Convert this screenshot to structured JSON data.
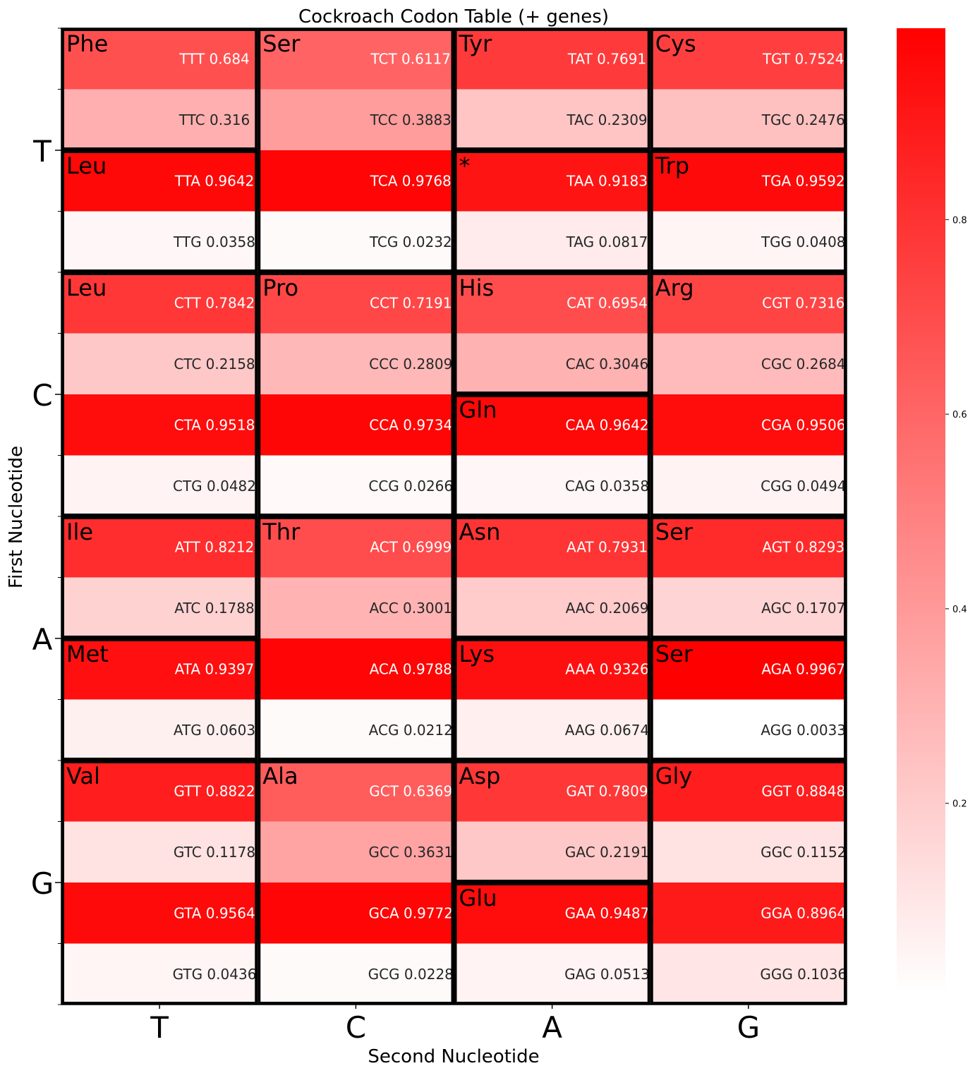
{
  "chart_data": {
    "type": "heatmap",
    "title": "Cockroach Codon Table (+ genes)",
    "xlabel": "Second Nucleotide",
    "ylabel": "First Nucleotide",
    "x_categories": [
      "T",
      "C",
      "A",
      "G"
    ],
    "y_categories": [
      "T",
      "C",
      "A",
      "G"
    ],
    "third_nucleotide_order": [
      "T",
      "C",
      "A",
      "G"
    ],
    "value_range": [
      0.0033,
      0.9967
    ],
    "colormap": {
      "low": "#ffffff",
      "high": "#ff0000"
    },
    "colorbar": {
      "ticks": [
        0.2,
        0.4,
        0.6,
        0.8
      ],
      "tick_labels": [
        "0.2",
        "0.4",
        "0.6",
        "0.8"
      ]
    },
    "cells": [
      [
        [
          {
            "codon": "TTT",
            "value": 0.684,
            "label": "TTT 0.684"
          },
          {
            "codon": "TTC",
            "value": 0.316,
            "label": "TTC 0.316"
          },
          {
            "codon": "TTA",
            "value": 0.9642,
            "label": "TTA 0.9642"
          },
          {
            "codon": "TTG",
            "value": 0.0358,
            "label": "TTG 0.0358"
          }
        ],
        [
          {
            "codon": "TCT",
            "value": 0.6117,
            "label": "TCT 0.6117"
          },
          {
            "codon": "TCC",
            "value": 0.3883,
            "label": "TCC 0.3883"
          },
          {
            "codon": "TCA",
            "value": 0.9768,
            "label": "TCA 0.9768"
          },
          {
            "codon": "TCG",
            "value": 0.0232,
            "label": "TCG 0.0232"
          }
        ],
        [
          {
            "codon": "TAT",
            "value": 0.7691,
            "label": "TAT 0.7691"
          },
          {
            "codon": "TAC",
            "value": 0.2309,
            "label": "TAC 0.2309"
          },
          {
            "codon": "TAA",
            "value": 0.9183,
            "label": "TAA 0.9183"
          },
          {
            "codon": "TAG",
            "value": 0.0817,
            "label": "TAG 0.0817"
          }
        ],
        [
          {
            "codon": "TGT",
            "value": 0.7524,
            "label": "TGT 0.7524"
          },
          {
            "codon": "TGC",
            "value": 0.2476,
            "label": "TGC 0.2476"
          },
          {
            "codon": "TGA",
            "value": 0.9592,
            "label": "TGA 0.9592"
          },
          {
            "codon": "TGG",
            "value": 0.0408,
            "label": "TGG 0.0408"
          }
        ]
      ],
      [
        [
          {
            "codon": "CTT",
            "value": 0.7842,
            "label": "CTT 0.7842"
          },
          {
            "codon": "CTC",
            "value": 0.2158,
            "label": "CTC 0.2158"
          },
          {
            "codon": "CTA",
            "value": 0.9518,
            "label": "CTA 0.9518"
          },
          {
            "codon": "CTG",
            "value": 0.0482,
            "label": "CTG 0.0482"
          }
        ],
        [
          {
            "codon": "CCT",
            "value": 0.7191,
            "label": "CCT 0.7191"
          },
          {
            "codon": "CCC",
            "value": 0.2809,
            "label": "CCC 0.2809"
          },
          {
            "codon": "CCA",
            "value": 0.9734,
            "label": "CCA 0.9734"
          },
          {
            "codon": "CCG",
            "value": 0.0266,
            "label": "CCG 0.0266"
          }
        ],
        [
          {
            "codon": "CAT",
            "value": 0.6954,
            "label": "CAT 0.6954"
          },
          {
            "codon": "CAC",
            "value": 0.3046,
            "label": "CAC 0.3046"
          },
          {
            "codon": "CAA",
            "value": 0.9642,
            "label": "CAA 0.9642"
          },
          {
            "codon": "CAG",
            "value": 0.0358,
            "label": "CAG 0.0358"
          }
        ],
        [
          {
            "codon": "CGT",
            "value": 0.7316,
            "label": "CGT 0.7316"
          },
          {
            "codon": "CGC",
            "value": 0.2684,
            "label": "CGC 0.2684"
          },
          {
            "codon": "CGA",
            "value": 0.9506,
            "label": "CGA 0.9506"
          },
          {
            "codon": "CGG",
            "value": 0.0494,
            "label": "CGG 0.0494"
          }
        ]
      ],
      [
        [
          {
            "codon": "ATT",
            "value": 0.8212,
            "label": "ATT 0.8212"
          },
          {
            "codon": "ATC",
            "value": 0.1788,
            "label": "ATC 0.1788"
          },
          {
            "codon": "ATA",
            "value": 0.9397,
            "label": "ATA 0.9397"
          },
          {
            "codon": "ATG",
            "value": 0.0603,
            "label": "ATG 0.0603"
          }
        ],
        [
          {
            "codon": "ACT",
            "value": 0.6999,
            "label": "ACT 0.6999"
          },
          {
            "codon": "ACC",
            "value": 0.3001,
            "label": "ACC 0.3001"
          },
          {
            "codon": "ACA",
            "value": 0.9788,
            "label": "ACA 0.9788"
          },
          {
            "codon": "ACG",
            "value": 0.0212,
            "label": "ACG 0.0212"
          }
        ],
        [
          {
            "codon": "AAT",
            "value": 0.7931,
            "label": "AAT 0.7931"
          },
          {
            "codon": "AAC",
            "value": 0.2069,
            "label": "AAC 0.2069"
          },
          {
            "codon": "AAA",
            "value": 0.9326,
            "label": "AAA 0.9326"
          },
          {
            "codon": "AAG",
            "value": 0.0674,
            "label": "AAG 0.0674"
          }
        ],
        [
          {
            "codon": "AGT",
            "value": 0.8293,
            "label": "AGT 0.8293"
          },
          {
            "codon": "AGC",
            "value": 0.1707,
            "label": "AGC 0.1707"
          },
          {
            "codon": "AGA",
            "value": 0.9967,
            "label": "AGA 0.9967"
          },
          {
            "codon": "AGG",
            "value": 0.0033,
            "label": "AGG 0.0033"
          }
        ]
      ],
      [
        [
          {
            "codon": "GTT",
            "value": 0.8822,
            "label": "GTT 0.8822"
          },
          {
            "codon": "GTC",
            "value": 0.1178,
            "label": "GTC 0.1178"
          },
          {
            "codon": "GTA",
            "value": 0.9564,
            "label": "GTA 0.9564"
          },
          {
            "codon": "GTG",
            "value": 0.0436,
            "label": "GTG 0.0436"
          }
        ],
        [
          {
            "codon": "GCT",
            "value": 0.6369,
            "label": "GCT 0.6369"
          },
          {
            "codon": "GCC",
            "value": 0.3631,
            "label": "GCC 0.3631"
          },
          {
            "codon": "GCA",
            "value": 0.9772,
            "label": "GCA 0.9772"
          },
          {
            "codon": "GCG",
            "value": 0.0228,
            "label": "GCG 0.0228"
          }
        ],
        [
          {
            "codon": "GAT",
            "value": 0.7809,
            "label": "GAT 0.7809"
          },
          {
            "codon": "GAC",
            "value": 0.2191,
            "label": "GAC 0.2191"
          },
          {
            "codon": "GAA",
            "value": 0.9487,
            "label": "GAA 0.9487"
          },
          {
            "codon": "GAG",
            "value": 0.0513,
            "label": "GAG 0.0513"
          }
        ],
        [
          {
            "codon": "GGT",
            "value": 0.8848,
            "label": "GGT 0.8848"
          },
          {
            "codon": "GGC",
            "value": 0.1152,
            "label": "GGC 0.1152"
          },
          {
            "codon": "GGA",
            "value": 0.8964,
            "label": "GGA 0.8964"
          },
          {
            "codon": "GGG",
            "value": 0.1036,
            "label": "GGG 0.1036"
          }
        ]
      ]
    ],
    "amino_acid_groups": [
      {
        "first": 0,
        "second": 0,
        "third_start": 0,
        "third_end": 1,
        "label": "Phe"
      },
      {
        "first": 0,
        "second": 0,
        "third_start": 2,
        "third_end": 3,
        "label": "Leu"
      },
      {
        "first": 0,
        "second": 1,
        "third_start": 0,
        "third_end": 3,
        "label": "Ser"
      },
      {
        "first": 0,
        "second": 2,
        "third_start": 0,
        "third_end": 1,
        "label": "Tyr"
      },
      {
        "first": 0,
        "second": 2,
        "third_start": 2,
        "third_end": 3,
        "label": "*"
      },
      {
        "first": 0,
        "second": 3,
        "third_start": 0,
        "third_end": 1,
        "label": "Cys"
      },
      {
        "first": 0,
        "second": 3,
        "third_start": 2,
        "third_end": 3,
        "label": "Trp"
      },
      {
        "first": 1,
        "second": 0,
        "third_start": 0,
        "third_end": 3,
        "label": "Leu"
      },
      {
        "first": 1,
        "second": 1,
        "third_start": 0,
        "third_end": 3,
        "label": "Pro"
      },
      {
        "first": 1,
        "second": 2,
        "third_start": 0,
        "third_end": 1,
        "label": "His"
      },
      {
        "first": 1,
        "second": 2,
        "third_start": 2,
        "third_end": 3,
        "label": "Gln"
      },
      {
        "first": 1,
        "second": 3,
        "third_start": 0,
        "third_end": 3,
        "label": "Arg"
      },
      {
        "first": 2,
        "second": 0,
        "third_start": 0,
        "third_end": 1,
        "label": "Ile"
      },
      {
        "first": 2,
        "second": 0,
        "third_start": 2,
        "third_end": 3,
        "label": "Met"
      },
      {
        "first": 2,
        "second": 1,
        "third_start": 0,
        "third_end": 3,
        "label": "Thr"
      },
      {
        "first": 2,
        "second": 2,
        "third_start": 0,
        "third_end": 1,
        "label": "Asn"
      },
      {
        "first": 2,
        "second": 2,
        "third_start": 2,
        "third_end": 3,
        "label": "Lys"
      },
      {
        "first": 2,
        "second": 3,
        "third_start": 0,
        "third_end": 1,
        "label": "Ser"
      },
      {
        "first": 2,
        "second": 3,
        "third_start": 2,
        "third_end": 3,
        "label": "Ser"
      },
      {
        "first": 3,
        "second": 0,
        "third_start": 0,
        "third_end": 3,
        "label": "Val"
      },
      {
        "first": 3,
        "second": 1,
        "third_start": 0,
        "third_end": 3,
        "label": "Ala"
      },
      {
        "first": 3,
        "second": 2,
        "third_start": 0,
        "third_end": 1,
        "label": "Asp"
      },
      {
        "first": 3,
        "second": 2,
        "third_start": 2,
        "third_end": 3,
        "label": "Glu"
      },
      {
        "first": 3,
        "second": 3,
        "third_start": 0,
        "third_end": 3,
        "label": "Gly"
      }
    ]
  }
}
